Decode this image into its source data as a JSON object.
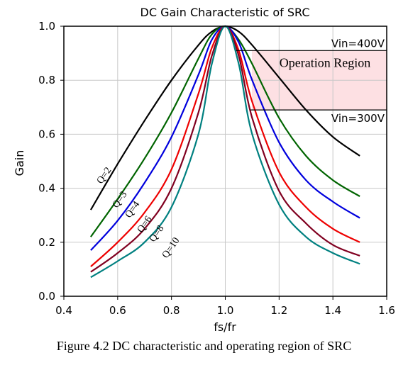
{
  "caption": "Figure 4.2 DC characteristic and operating region of SRC",
  "chart_data": {
    "type": "line",
    "title": "DC Gain Characteristic of SRC",
    "xlabel": "fs/fr",
    "ylabel": "Gain",
    "xlim": [
      0.4,
      1.6
    ],
    "ylim": [
      0.0,
      1.0
    ],
    "xticks": [
      "0.4",
      "0.6",
      "0.8",
      "1.0",
      "1.2",
      "1.4",
      "1.6"
    ],
    "yticks": [
      "0.0",
      "0.2",
      "0.4",
      "0.6",
      "0.8",
      "1.0"
    ],
    "grid": true,
    "x": [
      0.5,
      0.6,
      0.7,
      0.8,
      0.9,
      0.95,
      1.0,
      1.05,
      1.1,
      1.2,
      1.3,
      1.4,
      1.5
    ],
    "series": [
      {
        "name": "Q=2",
        "color": "#000000",
        "values": [
          0.32,
          0.49,
          0.65,
          0.8,
          0.93,
          0.98,
          1.0,
          0.98,
          0.93,
          0.81,
          0.69,
          0.59,
          0.52
        ]
      },
      {
        "name": "Q=3",
        "color": "#006400",
        "values": [
          0.22,
          0.36,
          0.51,
          0.68,
          0.88,
          0.97,
          1.0,
          0.95,
          0.86,
          0.66,
          0.52,
          0.43,
          0.37
        ]
      },
      {
        "name": "Q=4",
        "color": "#0000dd",
        "values": [
          0.17,
          0.28,
          0.42,
          0.59,
          0.82,
          0.95,
          1.0,
          0.94,
          0.8,
          0.57,
          0.43,
          0.35,
          0.29
        ]
      },
      {
        "name": "Q=6",
        "color": "#ee0000",
        "values": [
          0.11,
          0.2,
          0.31,
          0.47,
          0.75,
          0.92,
          1.0,
          0.91,
          0.72,
          0.46,
          0.33,
          0.25,
          0.2
        ]
      },
      {
        "name": "Q=8",
        "color": "#800020",
        "values": [
          0.09,
          0.16,
          0.25,
          0.4,
          0.68,
          0.89,
          1.0,
          0.89,
          0.66,
          0.39,
          0.27,
          0.19,
          0.15
        ]
      },
      {
        "name": "Q=10",
        "color": "#008080",
        "values": [
          0.07,
          0.13,
          0.2,
          0.33,
          0.6,
          0.86,
          1.0,
          0.86,
          0.6,
          0.34,
          0.22,
          0.16,
          0.12
        ]
      }
    ],
    "annotations": {
      "vin_high_label": "Vin=400V",
      "vin_high_gain": 0.91,
      "vin_low_label": "Vin=300V",
      "vin_low_gain": 0.69,
      "region_label": "Operation Region",
      "region_color": "#fde0e3"
    }
  }
}
